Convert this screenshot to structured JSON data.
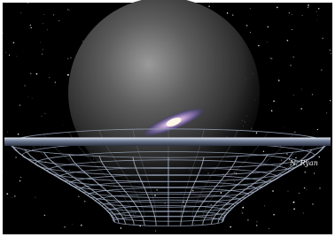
{
  "signature": "N. Ryan"
}
